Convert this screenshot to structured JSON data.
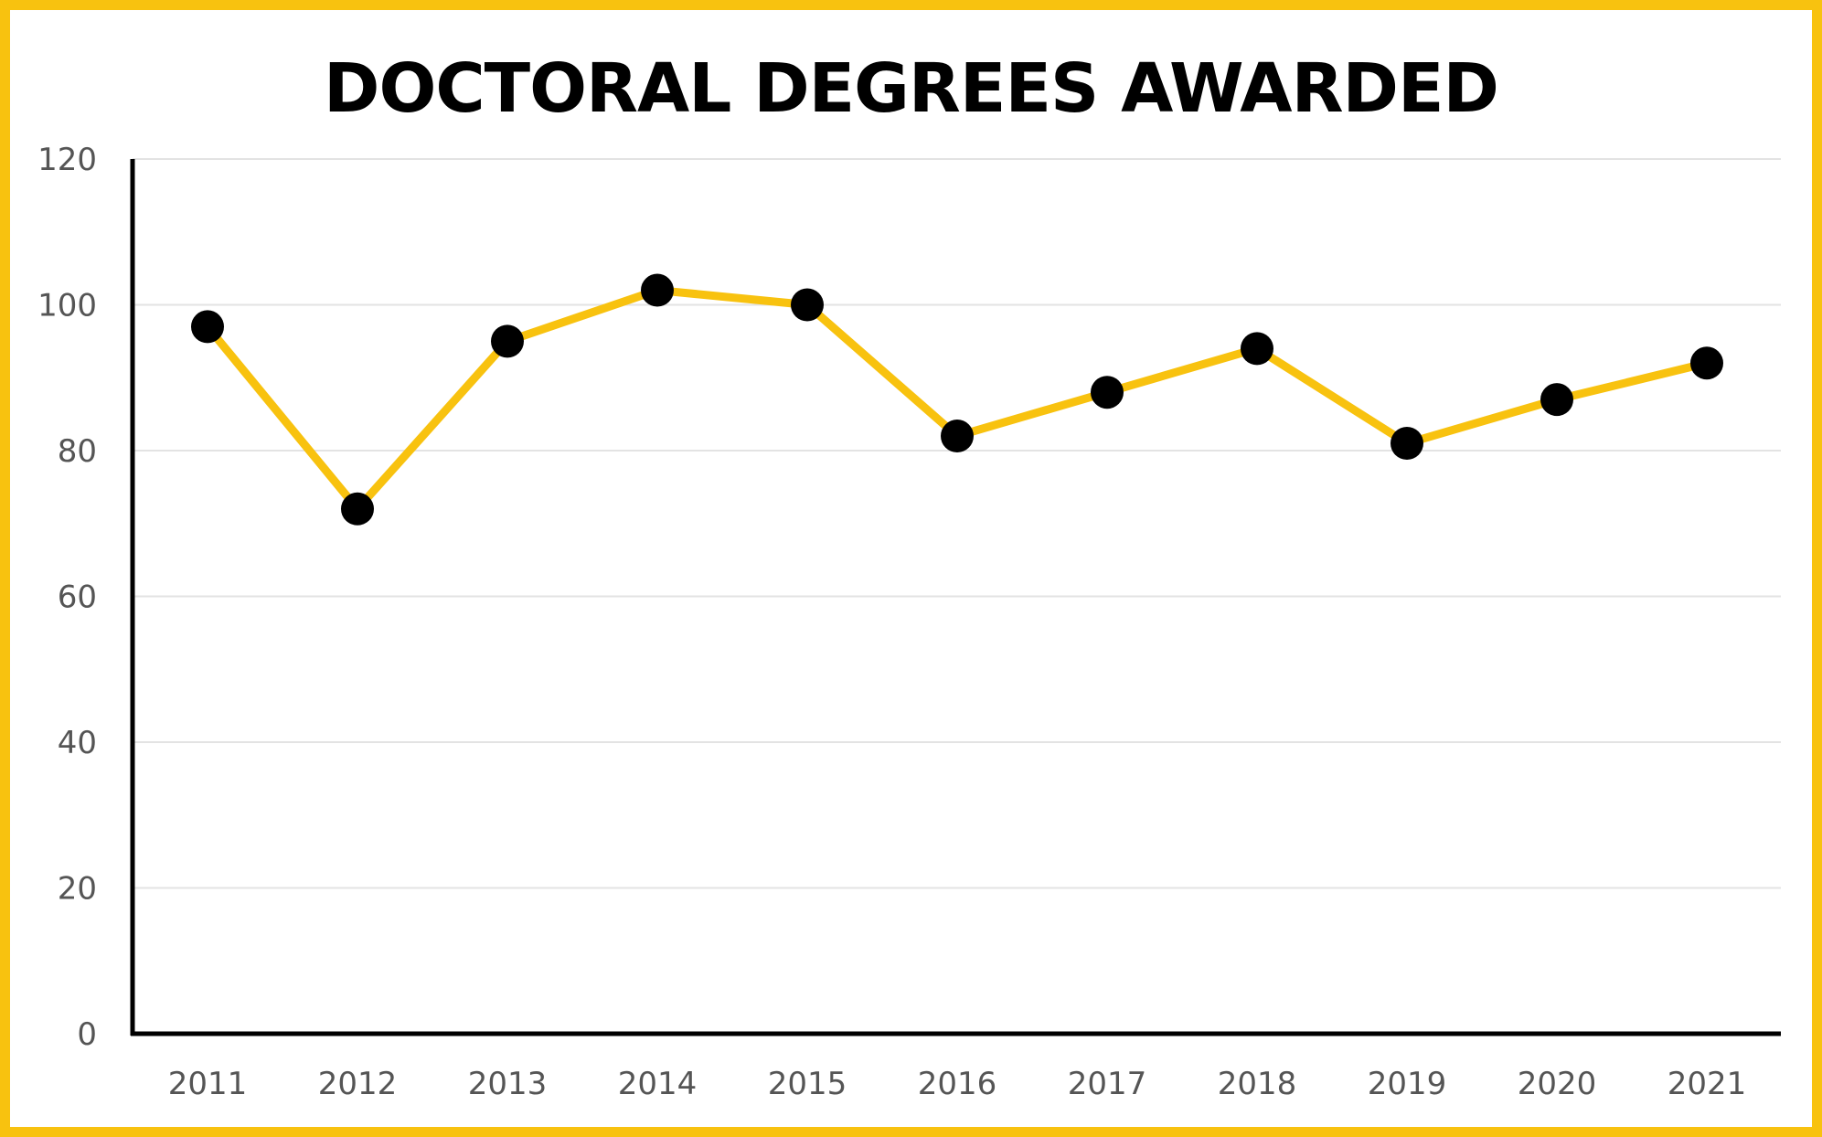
{
  "chart_data": {
    "type": "line",
    "title": "DOCTORAL DEGREES AWARDED",
    "xlabel": "",
    "ylabel": "",
    "x": [
      "2011",
      "2012",
      "2013",
      "2014",
      "2015",
      "2016",
      "2017",
      "2018",
      "2019",
      "2020",
      "2021"
    ],
    "series": [
      {
        "values": [
          97,
          72,
          95,
          102,
          100,
          82,
          88,
          94,
          81,
          87,
          92
        ]
      }
    ],
    "ylim": [
      0,
      120
    ],
    "yticks": [
      "0",
      "20",
      "40",
      "60",
      "80",
      "100",
      "120"
    ],
    "grid": true,
    "legend": "none",
    "colors": {
      "line": "#F8C20F",
      "marker": "#000000",
      "frame": "#F8C20F",
      "grid": "#E3E3E3",
      "axis": "#000000"
    }
  }
}
